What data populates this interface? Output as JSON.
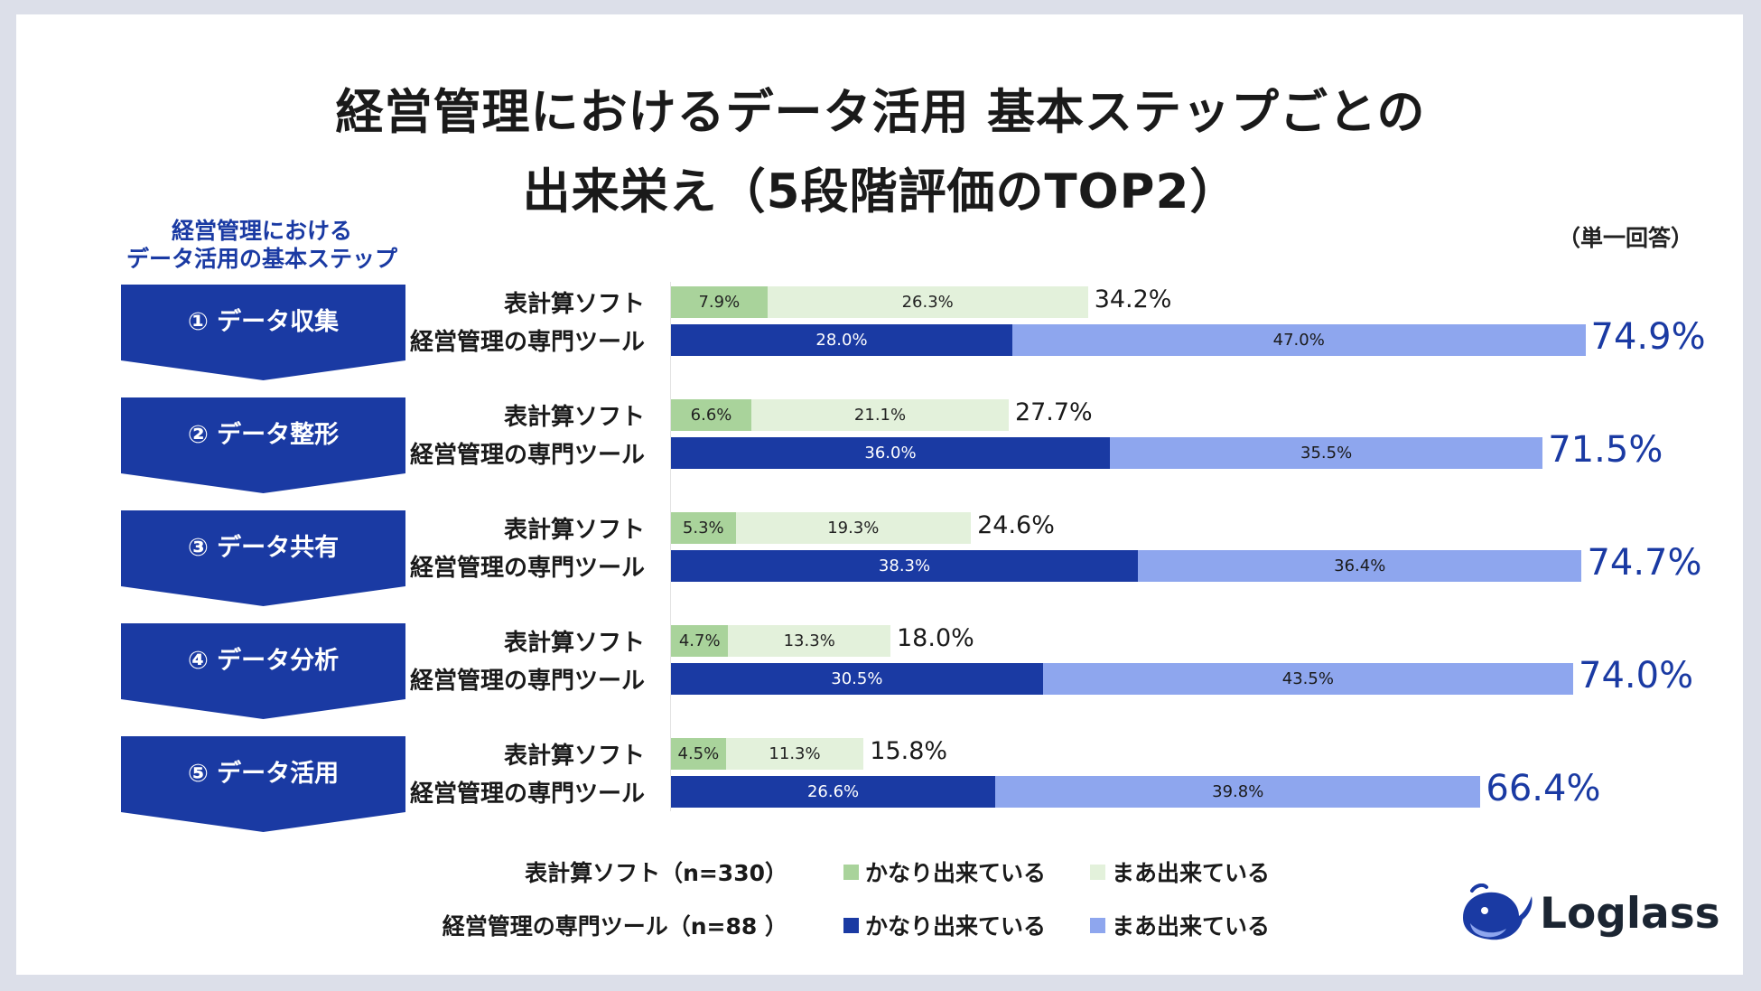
{
  "title_line1": "経営管理におけるデータ活用 基本ステップごとの",
  "title_line2": "出来栄え（5段階評価のTOP2）",
  "side_heading_line1": "経営管理における",
  "side_heading_line2": "データ活用の基本ステップ",
  "unit_note": "（単一回答）",
  "colors": {
    "excel_strong": "#a9d39b",
    "excel_mild": "#e3f1db",
    "pro_strong": "#1a3aa3",
    "pro_mild": "#8ea6ee",
    "chevron": "#1a3aa3"
  },
  "chart_data": {
    "type": "bar",
    "orientation": "horizontal",
    "stacked": true,
    "xlim": [
      0,
      100
    ],
    "categories": [
      "① データ収集",
      "② データ整形",
      "③ データ共有",
      "④ データ分析",
      "⑤ データ活用"
    ],
    "groups": [
      "表計算ソフト",
      "経営管理の専門ツール"
    ],
    "series": [
      {
        "group": "表計算ソフト",
        "name": "かなり出来ている",
        "values": [
          7.9,
          6.6,
          5.3,
          4.7,
          4.5
        ]
      },
      {
        "group": "表計算ソフト",
        "name": "まあ出来ている",
        "values": [
          26.3,
          21.1,
          19.3,
          13.3,
          11.3
        ]
      },
      {
        "group": "経営管理の専門ツール",
        "name": "かなり出来ている",
        "values": [
          28.0,
          36.0,
          38.3,
          30.5,
          26.6
        ]
      },
      {
        "group": "経営管理の専門ツール",
        "name": "まあ出来ている",
        "values": [
          47.0,
          35.5,
          36.4,
          43.5,
          39.8
        ]
      }
    ],
    "totals": {
      "表計算ソフト": [
        34.2,
        27.7,
        24.6,
        18.0,
        15.8
      ],
      "経営管理の専門ツール": [
        74.9,
        71.5,
        74.7,
        74.0,
        66.4
      ]
    },
    "legend": [
      {
        "label": "表計算ソフト（n=330）",
        "items": [
          "かなり出来ている",
          "まあ出来ている"
        ]
      },
      {
        "label": "経営管理の専門ツール（n=88 ）",
        "items": [
          "かなり出来ている",
          "まあ出来ている"
        ]
      }
    ]
  },
  "logo": {
    "name": "Loglass",
    "icon": "whale-logo-icon"
  }
}
